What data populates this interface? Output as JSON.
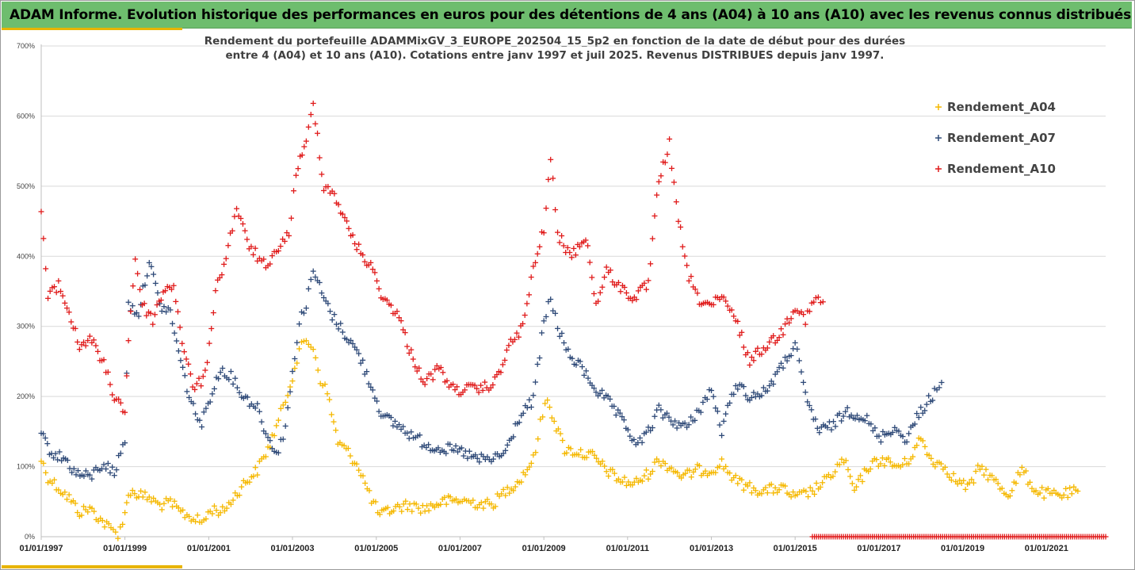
{
  "header": {
    "title": "ADAM Informe. Evolution historique des performances en euros pour des détentions de 4 ans (A04) à 10 ans (A10) avec les revenus connus distribués"
  },
  "colors": {
    "title_bar": "#6ebd6e",
    "accent": "#e8b400",
    "A04": "#f5b800",
    "A07": "#2f4a78",
    "A10": "#e01b1b"
  },
  "chart_data": {
    "type": "scatter",
    "title_line1": "Rendement du portefeuille ADAMMixGV_3_EUROPE_202504_15_5p2  en fonction de la date de début pour des durées",
    "title_line2": "entre 4 (A04) et 10 ans (A10). Cotations  entre janv 1997 et juil 2025. Revenus DISTRIBUES depuis janv 1997.",
    "x_axis": {
      "type": "date",
      "range": [
        "1997-01-01",
        "2022-06-01"
      ],
      "ticks": [
        "01/01/1997",
        "01/01/1999",
        "01/01/2001",
        "01/01/2003",
        "01/01/2005",
        "01/01/2007",
        "01/01/2009",
        "01/01/2011",
        "01/01/2013",
        "01/01/2015",
        "01/01/2017",
        "01/01/2019",
        "01/01/2021"
      ]
    },
    "y_axis": {
      "range": [
        0,
        700
      ],
      "unit": "%",
      "ticks": [
        "0%",
        "100%",
        "200%",
        "300%",
        "400%",
        "500%",
        "600%",
        "700%"
      ]
    },
    "grid": "horizontal",
    "legend_position": "right",
    "series": [
      {
        "name": "Rendement_A04",
        "color": "#f5b800",
        "points": [
          [
            "1997-01-01",
            110
          ],
          [
            "1997-03-01",
            85
          ],
          [
            "1997-06-01",
            70
          ],
          [
            "1997-09-01",
            55
          ],
          [
            "1997-12-01",
            35
          ],
          [
            "1998-03-01",
            40
          ],
          [
            "1998-06-01",
            25
          ],
          [
            "1998-09-01",
            10
          ],
          [
            "1998-11-01",
            5
          ],
          [
            "1999-01-01",
            30
          ],
          [
            "1999-02-01",
            65
          ],
          [
            "1999-05-01",
            60
          ],
          [
            "1999-08-01",
            55
          ],
          [
            "1999-11-01",
            45
          ],
          [
            "2000-02-01",
            48
          ],
          [
            "2000-05-01",
            35
          ],
          [
            "2000-08-01",
            28
          ],
          [
            "2000-11-01",
            20
          ],
          [
            "2001-02-01",
            40
          ],
          [
            "2001-05-01",
            35
          ],
          [
            "2001-08-01",
            55
          ],
          [
            "2001-11-01",
            75
          ],
          [
            "2002-03-01",
            95
          ],
          [
            "2002-06-01",
            125
          ],
          [
            "2002-09-01",
            165
          ],
          [
            "2002-11-01",
            195
          ],
          [
            "2003-01-01",
            230
          ],
          [
            "2003-03-01",
            265
          ],
          [
            "2003-05-01",
            280
          ],
          [
            "2003-07-01",
            270
          ],
          [
            "2003-09-01",
            225
          ],
          [
            "2003-11-01",
            205
          ],
          [
            "2004-02-01",
            135
          ],
          [
            "2004-05-01",
            120
          ],
          [
            "2004-08-01",
            100
          ],
          [
            "2004-11-01",
            60
          ],
          [
            "2005-02-01",
            30
          ],
          [
            "2005-06-01",
            40
          ],
          [
            "2005-10-01",
            45
          ],
          [
            "2006-03-01",
            40
          ],
          [
            "2006-08-01",
            50
          ],
          [
            "2007-01-01",
            52
          ],
          [
            "2007-06-01",
            48
          ],
          [
            "2007-10-01",
            45
          ],
          [
            "2008-02-01",
            65
          ],
          [
            "2008-06-01",
            80
          ],
          [
            "2008-10-01",
            110
          ],
          [
            "2008-12-01",
            160
          ],
          [
            "2009-02-01",
            200
          ],
          [
            "2009-04-01",
            165
          ],
          [
            "2009-07-01",
            125
          ],
          [
            "2009-11-01",
            120
          ],
          [
            "2010-03-01",
            115
          ],
          [
            "2010-07-01",
            95
          ],
          [
            "2010-11-01",
            80
          ],
          [
            "2011-03-01",
            75
          ],
          [
            "2011-07-01",
            90
          ],
          [
            "2011-10-01",
            110
          ],
          [
            "2012-01-01",
            100
          ],
          [
            "2012-05-01",
            85
          ],
          [
            "2012-09-01",
            95
          ],
          [
            "2013-01-01",
            95
          ],
          [
            "2013-04-01",
            105
          ],
          [
            "2013-08-01",
            80
          ],
          [
            "2013-12-01",
            70
          ],
          [
            "2014-04-01",
            65
          ],
          [
            "2014-09-01",
            70
          ],
          [
            "2015-01-01",
            55
          ],
          [
            "2015-06-01",
            65
          ],
          [
            "2015-10-01",
            80
          ],
          [
            "2016-03-01",
            110
          ],
          [
            "2016-06-01",
            65
          ],
          [
            "2016-10-01",
            100
          ],
          [
            "2017-02-01",
            110
          ],
          [
            "2017-06-01",
            100
          ],
          [
            "2017-09-01",
            105
          ],
          [
            "2018-01-01",
            140
          ],
          [
            "2018-04-01",
            110
          ],
          [
            "2018-08-01",
            100
          ],
          [
            "2018-11-01",
            80
          ],
          [
            "2019-03-01",
            70
          ],
          [
            "2019-06-01",
            100
          ],
          [
            "2019-10-01",
            80
          ],
          [
            "2020-02-01",
            60
          ],
          [
            "2020-06-01",
            95
          ],
          [
            "2020-10-01",
            65
          ],
          [
            "2021-02-01",
            60
          ],
          [
            "2021-06-01",
            60
          ],
          [
            "2021-10-01",
            65
          ]
        ]
      },
      {
        "name": "Rendement_A07",
        "color": "#2f4a78",
        "points": [
          [
            "1997-01-01",
            145
          ],
          [
            "1997-04-01",
            120
          ],
          [
            "1997-08-01",
            110
          ],
          [
            "1997-11-01",
            90
          ],
          [
            "1998-03-01",
            85
          ],
          [
            "1998-07-01",
            105
          ],
          [
            "1998-10-01",
            90
          ],
          [
            "1999-01-01",
            140
          ],
          [
            "1999-02-01",
            330
          ],
          [
            "1999-05-01",
            320
          ],
          [
            "1999-08-01",
            395
          ],
          [
            "1999-11-01",
            330
          ],
          [
            "2000-02-01",
            320
          ],
          [
            "2000-05-01",
            250
          ],
          [
            "2000-08-01",
            190
          ],
          [
            "2000-11-01",
            160
          ],
          [
            "2001-02-01",
            210
          ],
          [
            "2001-05-01",
            240
          ],
          [
            "2001-08-01",
            225
          ],
          [
            "2001-11-01",
            200
          ],
          [
            "2002-03-01",
            185
          ],
          [
            "2002-06-01",
            140
          ],
          [
            "2002-09-01",
            120
          ],
          [
            "2002-11-01",
            160
          ],
          [
            "2003-01-01",
            230
          ],
          [
            "2003-03-01",
            310
          ],
          [
            "2003-05-01",
            330
          ],
          [
            "2003-07-01",
            380
          ],
          [
            "2003-10-01",
            340
          ],
          [
            "2004-01-01",
            310
          ],
          [
            "2004-04-01",
            290
          ],
          [
            "2004-08-01",
            260
          ],
          [
            "2004-12-01",
            210
          ],
          [
            "2005-03-01",
            170
          ],
          [
            "2005-07-01",
            160
          ],
          [
            "2005-11-01",
            145
          ],
          [
            "2006-04-01",
            130
          ],
          [
            "2006-09-01",
            125
          ],
          [
            "2007-02-01",
            120
          ],
          [
            "2007-06-01",
            110
          ],
          [
            "2007-10-01",
            110
          ],
          [
            "2008-02-01",
            120
          ],
          [
            "2008-06-01",
            170
          ],
          [
            "2008-10-01",
            195
          ],
          [
            "2009-01-01",
            305
          ],
          [
            "2009-03-01",
            340
          ],
          [
            "2009-05-01",
            300
          ],
          [
            "2009-08-01",
            260
          ],
          [
            "2009-12-01",
            240
          ],
          [
            "2010-04-01",
            210
          ],
          [
            "2010-08-01",
            190
          ],
          [
            "2010-12-01",
            160
          ],
          [
            "2011-04-01",
            130
          ],
          [
            "2011-07-01",
            150
          ],
          [
            "2011-10-01",
            180
          ],
          [
            "2012-02-01",
            165
          ],
          [
            "2012-06-01",
            155
          ],
          [
            "2012-10-01",
            185
          ],
          [
            "2013-01-01",
            210
          ],
          [
            "2013-04-01",
            150
          ],
          [
            "2013-08-01",
            220
          ],
          [
            "2013-12-01",
            200
          ],
          [
            "2014-04-01",
            205
          ],
          [
            "2014-09-01",
            240
          ],
          [
            "2015-01-01",
            275
          ],
          [
            "2015-04-01",
            200
          ],
          [
            "2015-08-01",
            150
          ],
          [
            "2015-12-01",
            160
          ],
          [
            "2016-04-01",
            180
          ],
          [
            "2016-09-01",
            170
          ],
          [
            "2017-01-01",
            140
          ],
          [
            "2017-05-01",
            155
          ],
          [
            "2017-09-01",
            140
          ],
          [
            "2018-01-01",
            180
          ],
          [
            "2018-05-01",
            205
          ],
          [
            "2018-07-01",
            220
          ]
        ]
      },
      {
        "name": "Rendement_A10",
        "color": "#e01b1b",
        "points": [
          [
            "1997-01-01",
            465
          ],
          [
            "1997-03-01",
            340
          ],
          [
            "1997-06-01",
            360
          ],
          [
            "1997-09-01",
            320
          ],
          [
            "1997-12-01",
            270
          ],
          [
            "1998-03-01",
            285
          ],
          [
            "1998-07-01",
            245
          ],
          [
            "1998-10-01",
            200
          ],
          [
            "1999-01-01",
            180
          ],
          [
            "1999-02-01",
            280
          ],
          [
            "1999-04-01",
            400
          ],
          [
            "1999-06-01",
            330
          ],
          [
            "1999-09-01",
            310
          ],
          [
            "1999-12-01",
            350
          ],
          [
            "2000-03-01",
            360
          ],
          [
            "2000-06-01",
            260
          ],
          [
            "2000-09-01",
            210
          ],
          [
            "2000-12-01",
            230
          ],
          [
            "2001-03-01",
            350
          ],
          [
            "2001-06-01",
            400
          ],
          [
            "2001-09-01",
            470
          ],
          [
            "2001-12-01",
            420
          ],
          [
            "2002-03-01",
            400
          ],
          [
            "2002-06-01",
            380
          ],
          [
            "2002-09-01",
            415
          ],
          [
            "2002-12-01",
            430
          ],
          [
            "2003-02-01",
            520
          ],
          [
            "2003-05-01",
            560
          ],
          [
            "2003-07-01",
            620
          ],
          [
            "2003-10-01",
            500
          ],
          [
            "2004-01-01",
            490
          ],
          [
            "2004-04-01",
            450
          ],
          [
            "2004-08-01",
            410
          ],
          [
            "2004-12-01",
            380
          ],
          [
            "2005-03-01",
            340
          ],
          [
            "2005-07-01",
            320
          ],
          [
            "2005-11-01",
            260
          ],
          [
            "2006-03-01",
            220
          ],
          [
            "2006-07-01",
            240
          ],
          [
            "2006-11-01",
            210
          ],
          [
            "2007-03-01",
            210
          ],
          [
            "2007-07-01",
            210
          ],
          [
            "2007-11-01",
            220
          ],
          [
            "2008-03-01",
            270
          ],
          [
            "2008-07-01",
            300
          ],
          [
            "2008-10-01",
            380
          ],
          [
            "2009-01-01",
            440
          ],
          [
            "2009-03-01",
            540
          ],
          [
            "2009-05-01",
            430
          ],
          [
            "2009-09-01",
            400
          ],
          [
            "2010-01-01",
            430
          ],
          [
            "2010-04-01",
            330
          ],
          [
            "2010-07-01",
            380
          ],
          [
            "2010-11-01",
            355
          ],
          [
            "2011-03-01",
            340
          ],
          [
            "2011-07-01",
            360
          ],
          [
            "2011-10-01",
            510
          ],
          [
            "2012-01-01",
            560
          ],
          [
            "2012-03-01",
            470
          ],
          [
            "2012-06-01",
            380
          ],
          [
            "2012-09-01",
            340
          ],
          [
            "2013-01-01",
            330
          ],
          [
            "2013-04-01",
            340
          ],
          [
            "2013-08-01",
            310
          ],
          [
            "2013-12-01",
            250
          ],
          [
            "2014-04-01",
            270
          ],
          [
            "2014-09-01",
            290
          ],
          [
            "2015-01-01",
            330
          ],
          [
            "2015-04-01",
            310
          ],
          [
            "2015-07-01",
            340
          ],
          [
            "2015-09-01",
            335
          ]
        ]
      },
      {
        "name": "Rendement_A10",
        "color": "#e01b1b",
        "points": [
          [
            "2015-06-01",
            0
          ],
          [
            "2022-06-01",
            0
          ]
        ]
      }
    ]
  }
}
